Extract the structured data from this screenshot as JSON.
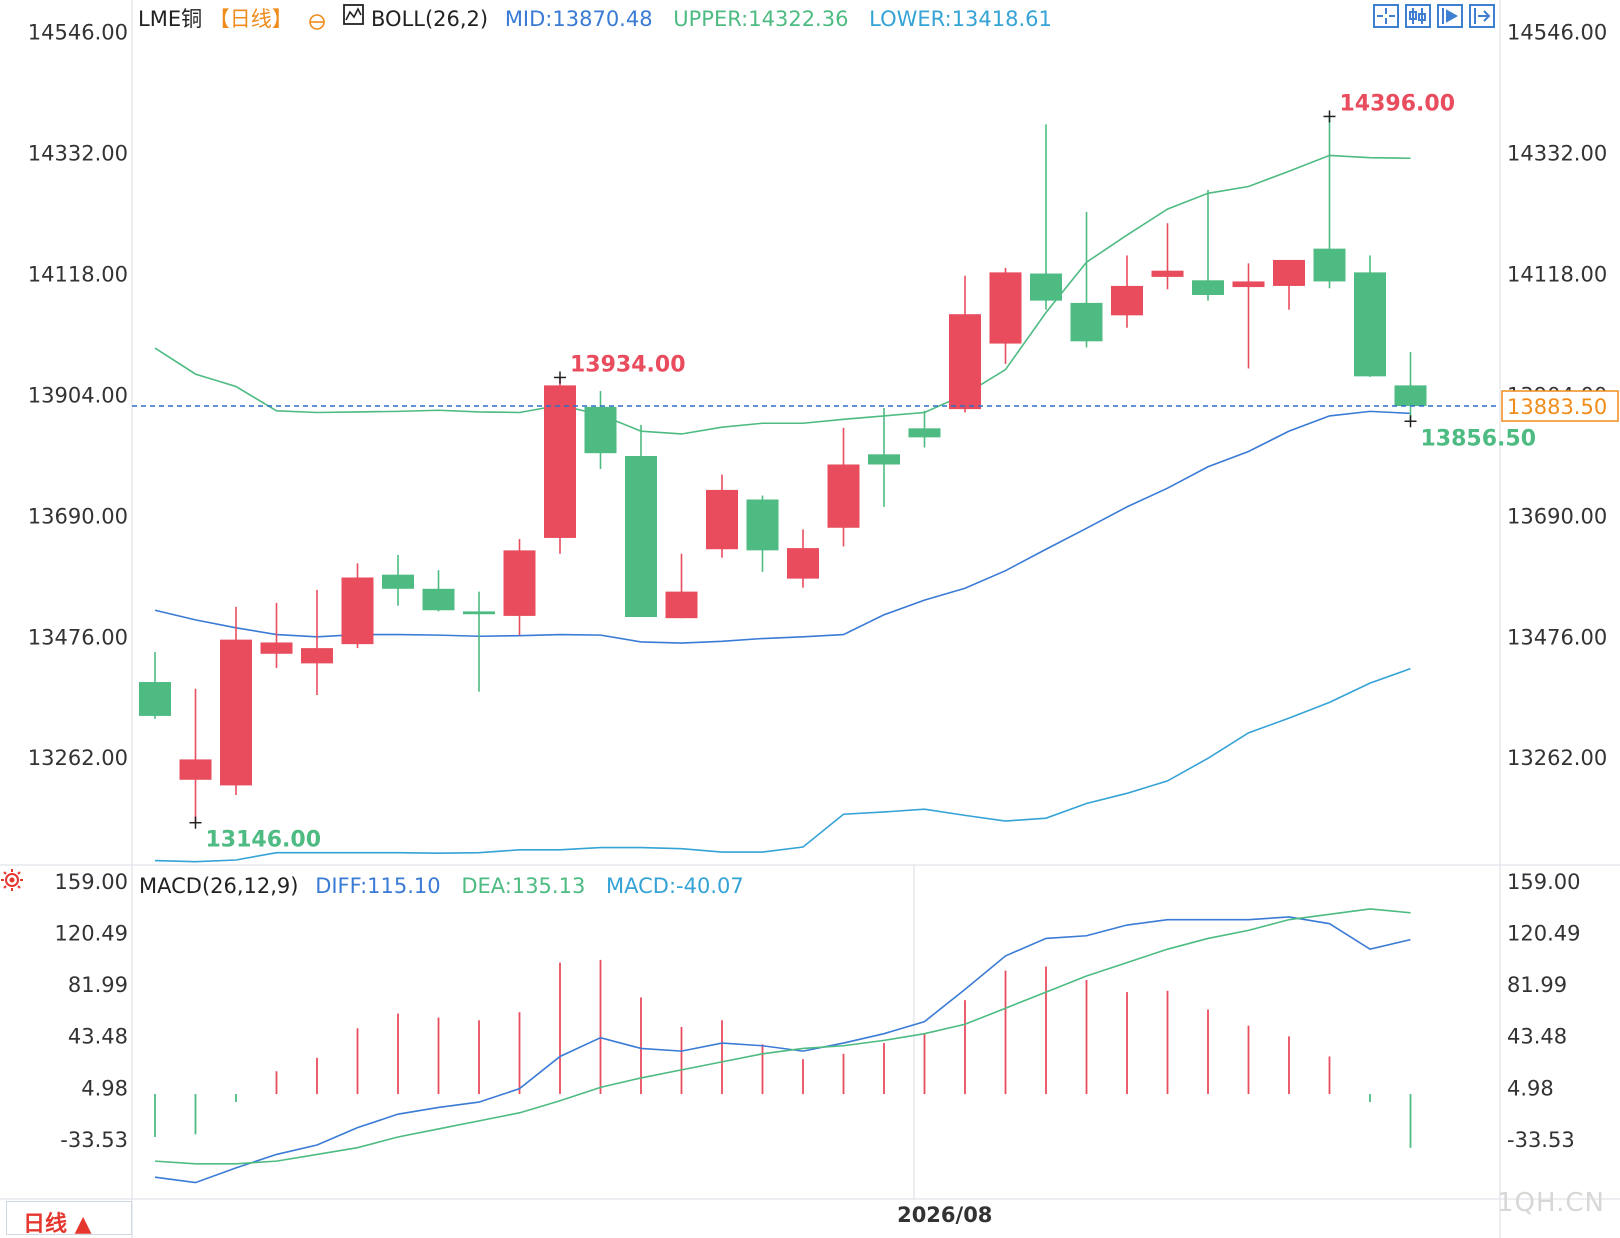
{
  "header": {
    "instrument": "LME铜",
    "period": "【日线】",
    "indicator_name": "BOLL(26,2)",
    "mid_label": "MID:13870.48",
    "upper_label": "UPPER:14322.36",
    "lower_label": "LOWER:13418.61"
  },
  "macd_header": {
    "name": "MACD(26,12,9)",
    "diff_label": "DIFF:115.10",
    "dea_label": "DEA:135.13",
    "macd_label": "MACD:-40.07"
  },
  "toolbar": {
    "icons": [
      "crosshair-icon",
      "candlestick-icon",
      "step-forward-icon",
      "expand-icon"
    ]
  },
  "period_button": {
    "label": "日线 ▲"
  },
  "watermark": "1QH.CN",
  "colors": {
    "up": "#e84c5d",
    "down": "#4dbb82",
    "mid": "#3a7bd5",
    "upper": "#4dbb82",
    "lower": "#35a3d6",
    "dea": "#4dbb82",
    "diff": "#3a7bd5",
    "axis": "#333333",
    "last_price": "#f08c1b"
  },
  "chart_data": [
    {
      "type": "candlestick",
      "title": "LME铜【日线】",
      "y_ticks": [
        "14546.00",
        "14332.00",
        "14118.00",
        "13904.00",
        "13690.00",
        "13476.00",
        "13262.00"
      ],
      "y_tick_values": [
        14546,
        14332,
        14118,
        13904,
        13690,
        13476,
        13262
      ],
      "ylim": [
        13080,
        14595
      ],
      "x_tick_label": "2026/08",
      "x_tick_index": 19.5,
      "last_price": 13883.5,
      "last_price_label": "13883.50",
      "annotations": [
        {
          "label": "14396.00",
          "index": 29,
          "value": 14396,
          "kind": "high"
        },
        {
          "label": "13934.00",
          "index": 10,
          "value": 13934,
          "kind": "high"
        },
        {
          "label": "13146.00",
          "index": 1,
          "value": 13146,
          "kind": "low"
        },
        {
          "label": "13856.50",
          "index": 31,
          "value": 13856.5,
          "kind": "low"
        }
      ],
      "candles": [
        {
          "o": 13395,
          "h": 13448,
          "l": 13330,
          "c": 13335
        },
        {
          "o": 13222,
          "h": 13383,
          "l": 13146,
          "c": 13258
        },
        {
          "o": 13212,
          "h": 13528,
          "l": 13195,
          "c": 13470
        },
        {
          "o": 13445,
          "h": 13535,
          "l": 13420,
          "c": 13465
        },
        {
          "o": 13428,
          "h": 13558,
          "l": 13372,
          "c": 13455
        },
        {
          "o": 13462,
          "h": 13605,
          "l": 13455,
          "c": 13580
        },
        {
          "o": 13585,
          "h": 13620,
          "l": 13530,
          "c": 13560
        },
        {
          "o": 13560,
          "h": 13593,
          "l": 13520,
          "c": 13522
        },
        {
          "o": 13520,
          "h": 13555,
          "l": 13378,
          "c": 13515
        },
        {
          "o": 13512,
          "h": 13648,
          "l": 13478,
          "c": 13628
        },
        {
          "o": 13650,
          "h": 13934,
          "l": 13622,
          "c": 13920
        },
        {
          "o": 13882,
          "h": 13910,
          "l": 13772,
          "c": 13800
        },
        {
          "o": 13795,
          "h": 13850,
          "l": 13510,
          "c": 13510
        },
        {
          "o": 13508,
          "h": 13622,
          "l": 13508,
          "c": 13555
        },
        {
          "o": 13630,
          "h": 13762,
          "l": 13615,
          "c": 13735
        },
        {
          "o": 13718,
          "h": 13725,
          "l": 13590,
          "c": 13628
        },
        {
          "o": 13578,
          "h": 13665,
          "l": 13562,
          "c": 13632
        },
        {
          "o": 13668,
          "h": 13845,
          "l": 13635,
          "c": 13780
        },
        {
          "o": 13798,
          "h": 13880,
          "l": 13705,
          "c": 13780
        },
        {
          "o": 13844,
          "h": 13875,
          "l": 13810,
          "c": 13828
        },
        {
          "o": 13878,
          "h": 14114,
          "l": 13872,
          "c": 14046
        },
        {
          "o": 13994,
          "h": 14128,
          "l": 13958,
          "c": 14120
        },
        {
          "o": 14118,
          "h": 14382,
          "l": 14054,
          "c": 14070
        },
        {
          "o": 14066,
          "h": 14227,
          "l": 13987,
          "c": 13998
        },
        {
          "o": 14044,
          "h": 14150,
          "l": 14022,
          "c": 14096
        },
        {
          "o": 14112,
          "h": 14207,
          "l": 14090,
          "c": 14123
        },
        {
          "o": 14106,
          "h": 14266,
          "l": 14070,
          "c": 14080
        },
        {
          "o": 14094,
          "h": 14136,
          "l": 13950,
          "c": 14104
        },
        {
          "o": 14096,
          "h": 14142,
          "l": 14054,
          "c": 14142
        },
        {
          "o": 14162,
          "h": 14396,
          "l": 14092,
          "c": 14104
        },
        {
          "o": 14120,
          "h": 14150,
          "l": 13935,
          "c": 13936
        },
        {
          "o": 13920,
          "h": 13979,
          "l": 13856.5,
          "c": 13883.5
        }
      ],
      "series": [
        {
          "name": "UPPER",
          "values": [
            13986,
            13940,
            13918,
            13875,
            13872,
            13873,
            13874,
            13876,
            13873,
            13872,
            13885,
            13868,
            13839,
            13834,
            13846,
            13853,
            13853,
            13860,
            13866,
            13872,
            13904,
            13948,
            14049,
            14138,
            14186,
            14232,
            14260,
            14272,
            14299,
            14327,
            14323,
            14322
          ]
        },
        {
          "name": "MID",
          "values": [
            13522,
            13505,
            13491,
            13479,
            13475,
            13479,
            13479,
            13478,
            13476,
            13477,
            13479,
            13478,
            13466,
            13464,
            13467,
            13472,
            13475,
            13479,
            13514,
            13540,
            13561,
            13592,
            13630,
            13667,
            13705,
            13738,
            13776,
            13803,
            13839,
            13866,
            13874,
            13870.48
          ]
        },
        {
          "name": "LOWER",
          "values": [
            13079,
            13077,
            13080,
            13093,
            13093,
            13093,
            13093,
            13092,
            13093,
            13098,
            13098,
            13102,
            13102,
            13100,
            13094,
            13094,
            13103,
            13161,
            13165,
            13170,
            13159,
            13149,
            13154,
            13180,
            13198,
            13220,
            13260,
            13305,
            13331,
            13359,
            13393,
            13418.61
          ]
        }
      ]
    },
    {
      "type": "bar+line",
      "title": "MACD(26,12,9)",
      "y_ticks": [
        "159.00",
        "120.49",
        "81.99",
        "43.48",
        "4.98",
        "-33.53"
      ],
      "y_tick_values": [
        159,
        120.49,
        81.99,
        43.48,
        4.98,
        -33.53
      ],
      "ylim": [
        -76,
        170
      ],
      "series": [
        {
          "name": "DIFF",
          "values": [
            -62,
            -66,
            -55,
            -45,
            -38,
            -25,
            -15,
            -10,
            -6,
            4,
            28,
            42,
            34,
            32,
            38,
            36,
            32,
            38,
            45,
            54,
            78,
            103,
            116,
            118,
            126,
            130,
            130,
            130,
            132,
            127,
            108,
            115.1
          ]
        },
        {
          "name": "DEA",
          "values": [
            -50,
            -52,
            -52,
            -50,
            -45,
            -40,
            -32,
            -26,
            -20,
            -14,
            -5,
            5,
            12,
            18,
            24,
            30,
            34,
            36,
            40,
            45,
            52,
            64,
            76,
            88,
            98,
            108,
            116,
            122,
            130,
            134,
            138,
            135.13
          ]
        },
        {
          "name": "MACD",
          "values": [
            -32,
            -30,
            -6,
            17,
            27,
            49,
            60,
            57,
            55,
            61,
            98,
            100,
            72,
            50,
            55,
            37,
            26,
            30,
            38,
            45,
            70,
            92,
            95,
            85,
            76,
            77,
            63,
            51,
            43,
            28,
            -6,
            -40.07
          ]
        }
      ]
    }
  ]
}
